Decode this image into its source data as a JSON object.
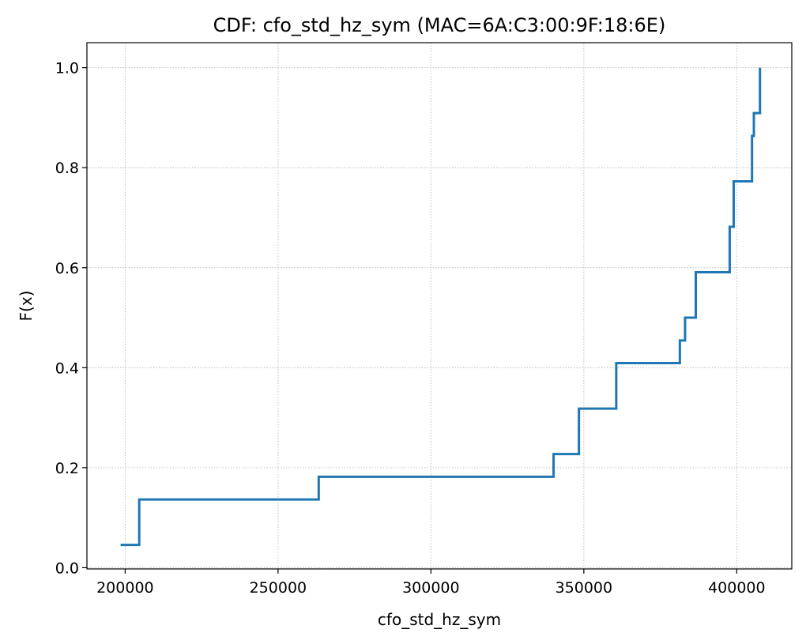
{
  "chart_data": {
    "type": "line",
    "step": "post",
    "title": "CDF: cfo_std_hz_sym (MAC=6A:C3:00:9F:18:6E)",
    "xlabel": "cfo_std_hz_sym",
    "ylabel": "F(x)",
    "xlim": [
      187500,
      418000
    ],
    "ylim": [
      -0.0025,
      1.05
    ],
    "xticks": [
      200000,
      250000,
      300000,
      350000,
      400000
    ],
    "xtick_labels": [
      "200000",
      "250000",
      "300000",
      "350000",
      "400000"
    ],
    "yticks": [
      0.0,
      0.2,
      0.4,
      0.6,
      0.8,
      1.0
    ],
    "ytick_labels": [
      "0.0",
      "0.2",
      "0.4",
      "0.6",
      "0.8",
      "1.0"
    ],
    "grid": true,
    "color": "#1f77b4",
    "series": [
      {
        "x": [
          198500,
          204600,
          263300,
          340100,
          348400,
          360600,
          381400,
          383100,
          386600,
          397700,
          399000,
          405000,
          405300,
          405600,
          407600
        ],
        "y": [
          0.0455,
          0.1364,
          0.1818,
          0.2273,
          0.3182,
          0.4091,
          0.4545,
          0.5,
          0.5909,
          0.6818,
          0.7727,
          0.8636,
          0.8636,
          0.9091,
          1.0
        ]
      }
    ]
  }
}
